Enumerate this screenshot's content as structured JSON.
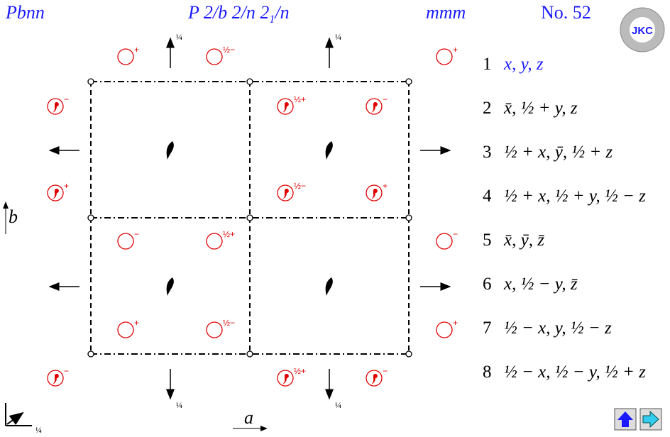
{
  "header": {
    "symbol": "Pbnn",
    "full_symbol": {
      "main": "P 2/b 2/n 2",
      "subscript": "1",
      "tail": "/n"
    },
    "point_group": "mmm",
    "number": "No. 52"
  },
  "logo": "JKC",
  "signs": {
    "plus": "+",
    "minus": "−",
    "half_plus": "½+",
    "half_minus": "½−"
  },
  "axes": {
    "a": "a",
    "b": "b",
    "quarter": "¼"
  },
  "positions": [
    {
      "number": "1",
      "coords": "x, y, z"
    },
    {
      "number": "2",
      "coords": "x̄, ½ + y, z"
    },
    {
      "number": "3",
      "coords": "½ + x, ȳ, ½ + z"
    },
    {
      "number": "4",
      "coords": "½ + x, ½ + y, ½ − z"
    },
    {
      "number": "5",
      "coords": "x̄, ȳ, z̄"
    },
    {
      "number": "6",
      "coords": "x, ½ − y, z̄"
    },
    {
      "number": "7",
      "coords": "½ − x, y, ½ − z"
    },
    {
      "number": "8",
      "coords": "½ − x, ½ − y, ½ + z"
    }
  ]
}
